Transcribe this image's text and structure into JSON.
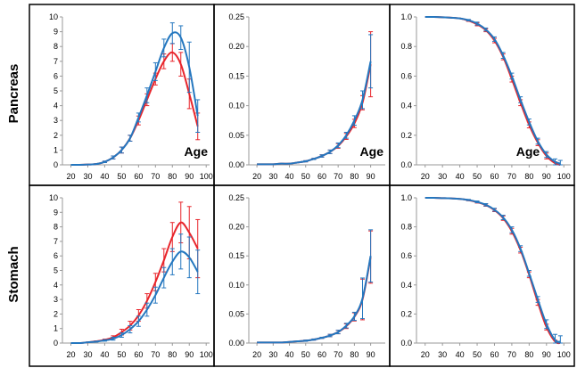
{
  "row_labels": [
    "Pancreas",
    "Stomach"
  ],
  "age_label": "Age",
  "colors": {
    "red": "#e8252b",
    "blue": "#2477bf",
    "axis": "#9a9a9a",
    "frame": "#000000"
  },
  "chart_data": [
    {
      "id": "pancreas-incidence",
      "type": "line",
      "ylim": [
        0,
        10
      ],
      "yticks": [
        0,
        1,
        2,
        3,
        4,
        5,
        6,
        7,
        8,
        9,
        10
      ],
      "ydec": 0,
      "x": [
        20,
        25,
        30,
        35,
        40,
        45,
        50,
        55,
        60,
        65,
        70,
        75,
        80,
        85,
        90,
        95
      ],
      "xlim": [
        15,
        102
      ],
      "xticks": [
        20,
        30,
        40,
        50,
        60,
        70,
        80,
        90,
        100
      ],
      "age_label": true,
      "grid": false,
      "series": [
        {
          "color": "red",
          "values": [
            0,
            0,
            0.02,
            0.05,
            0.2,
            0.5,
            1.0,
            1.8,
            3.0,
            4.4,
            5.8,
            7.0,
            7.6,
            6.8,
            4.8,
            2.6
          ],
          "err": [
            0,
            0,
            0,
            0.02,
            0.05,
            0.1,
            0.2,
            0.2,
            0.3,
            0.4,
            0.4,
            0.5,
            0.6,
            0.8,
            1.0,
            0.9
          ]
        },
        {
          "color": "blue",
          "values": [
            0,
            0,
            0.02,
            0.05,
            0.2,
            0.5,
            1.0,
            1.8,
            3.2,
            4.7,
            6.3,
            7.9,
            8.9,
            8.6,
            6.6,
            3.3
          ],
          "err": [
            0,
            0,
            0,
            0.02,
            0.05,
            0.1,
            0.2,
            0.2,
            0.3,
            0.5,
            0.6,
            0.6,
            0.7,
            0.8,
            1.7,
            1.1
          ]
        }
      ]
    },
    {
      "id": "pancreas-hazard",
      "type": "line",
      "ylim": [
        0,
        0.25
      ],
      "yticks": [
        0,
        0.05,
        0.1,
        0.15,
        0.2,
        0.25
      ],
      "ydec": 2,
      "x": [
        20,
        25,
        30,
        35,
        40,
        45,
        50,
        55,
        60,
        65,
        70,
        75,
        80,
        85,
        90
      ],
      "xlim": [
        15,
        99
      ],
      "xticks": [
        20,
        30,
        40,
        50,
        60,
        70,
        80,
        90
      ],
      "age_label": true,
      "grid": false,
      "series": [
        {
          "color": "red",
          "values": [
            0.001,
            0.001,
            0.001,
            0.002,
            0.002,
            0.004,
            0.006,
            0.01,
            0.015,
            0.022,
            0.032,
            0.048,
            0.07,
            0.105,
            0.17
          ],
          "err": [
            0,
            0,
            0,
            0,
            0,
            0,
            0.001,
            0.001,
            0.002,
            0.003,
            0.004,
            0.005,
            0.007,
            0.012,
            0.055
          ]
        },
        {
          "color": "blue",
          "values": [
            0.001,
            0.001,
            0.001,
            0.002,
            0.002,
            0.004,
            0.006,
            0.01,
            0.015,
            0.022,
            0.033,
            0.05,
            0.075,
            0.11,
            0.175
          ],
          "err": [
            0,
            0,
            0,
            0,
            0,
            0,
            0.001,
            0.001,
            0.002,
            0.003,
            0.004,
            0.005,
            0.008,
            0.015,
            0.045
          ]
        }
      ]
    },
    {
      "id": "pancreas-survival",
      "type": "line",
      "ylim": [
        0,
        1
      ],
      "yticks": [
        0,
        0.2,
        0.4,
        0.6,
        0.8,
        1
      ],
      "ydec": 1,
      "x": [
        20,
        25,
        30,
        35,
        40,
        45,
        50,
        55,
        60,
        65,
        70,
        75,
        80,
        85,
        90,
        95,
        98
      ],
      "xlim": [
        15,
        104
      ],
      "xticks": [
        20,
        30,
        40,
        50,
        60,
        70,
        80,
        90,
        100
      ],
      "age_label": true,
      "grid": false,
      "series": [
        {
          "color": "red",
          "values": [
            1,
            1,
            0.998,
            0.995,
            0.99,
            0.975,
            0.95,
            0.91,
            0.84,
            0.73,
            0.58,
            0.42,
            0.27,
            0.15,
            0.06,
            0.01,
            0
          ],
          "err": [
            0,
            0,
            0,
            0,
            0,
            0.005,
            0.01,
            0.01,
            0.015,
            0.02,
            0.02,
            0.02,
            0.02,
            0.02,
            0.02,
            0.01,
            0
          ]
        },
        {
          "color": "blue",
          "values": [
            1,
            1,
            0.998,
            0.995,
            0.99,
            0.978,
            0.955,
            0.915,
            0.85,
            0.74,
            0.6,
            0.44,
            0.29,
            0.16,
            0.07,
            0.02,
            0.01
          ],
          "err": [
            0,
            0,
            0,
            0,
            0,
            0.005,
            0.01,
            0.01,
            0.015,
            0.02,
            0.02,
            0.02,
            0.02,
            0.02,
            0.02,
            0.02,
            0.02
          ]
        }
      ]
    },
    {
      "id": "stomach-incidence",
      "type": "line",
      "ylim": [
        0,
        10
      ],
      "yticks": [
        0,
        1,
        2,
        3,
        4,
        5,
        6,
        7,
        8,
        9,
        10
      ],
      "ydec": 0,
      "x": [
        20,
        25,
        30,
        35,
        40,
        45,
        50,
        55,
        60,
        65,
        70,
        75,
        80,
        85,
        90,
        95
      ],
      "xlim": [
        15,
        102
      ],
      "xticks": [
        20,
        30,
        40,
        50,
        60,
        70,
        80,
        90,
        100
      ],
      "age_label": false,
      "grid": false,
      "series": [
        {
          "color": "red",
          "values": [
            0,
            0,
            0.05,
            0.12,
            0.22,
            0.4,
            0.75,
            1.2,
            1.9,
            2.9,
            4.2,
            5.7,
            7.3,
            8.3,
            7.6,
            6.5
          ],
          "err": [
            0,
            0,
            0.02,
            0.03,
            0.05,
            0.1,
            0.2,
            0.3,
            0.4,
            0.5,
            0.6,
            0.8,
            1.0,
            1.4,
            1.8,
            2.0
          ]
        },
        {
          "color": "blue",
          "values": [
            0,
            0,
            0.05,
            0.1,
            0.18,
            0.3,
            0.55,
            0.95,
            1.5,
            2.3,
            3.3,
            4.5,
            5.6,
            6.3,
            5.9,
            4.9
          ],
          "err": [
            0,
            0,
            0.02,
            0.03,
            0.05,
            0.1,
            0.15,
            0.25,
            0.35,
            0.45,
            0.55,
            0.7,
            0.9,
            1.2,
            1.4,
            1.5
          ]
        }
      ]
    },
    {
      "id": "stomach-hazard",
      "type": "line",
      "ylim": [
        0,
        0.25
      ],
      "yticks": [
        0,
        0.05,
        0.1,
        0.15,
        0.2,
        0.25
      ],
      "ydec": 2,
      "x": [
        20,
        25,
        30,
        35,
        40,
        45,
        50,
        55,
        60,
        65,
        70,
        75,
        80,
        85,
        90
      ],
      "xlim": [
        15,
        99
      ],
      "xticks": [
        20,
        30,
        40,
        50,
        60,
        70,
        80,
        90
      ],
      "age_label": false,
      "grid": false,
      "series": [
        {
          "color": "red",
          "values": [
            0.001,
            0.001,
            0.001,
            0.001,
            0.002,
            0.003,
            0.004,
            0.006,
            0.009,
            0.013,
            0.019,
            0.029,
            0.045,
            0.075,
            0.148
          ],
          "err": [
            0,
            0,
            0,
            0,
            0,
            0,
            0.001,
            0.001,
            0.001,
            0.002,
            0.003,
            0.004,
            0.007,
            0.035,
            0.045
          ]
        },
        {
          "color": "blue",
          "values": [
            0.001,
            0.001,
            0.001,
            0.001,
            0.002,
            0.003,
            0.004,
            0.006,
            0.009,
            0.013,
            0.019,
            0.03,
            0.046,
            0.077,
            0.15
          ],
          "err": [
            0,
            0,
            0,
            0,
            0,
            0,
            0.001,
            0.001,
            0.001,
            0.002,
            0.003,
            0.004,
            0.007,
            0.035,
            0.045
          ]
        }
      ]
    },
    {
      "id": "stomach-survival",
      "type": "line",
      "ylim": [
        0,
        1
      ],
      "yticks": [
        0,
        0.2,
        0.4,
        0.6,
        0.8,
        1
      ],
      "ydec": 1,
      "x": [
        20,
        25,
        30,
        35,
        40,
        45,
        50,
        55,
        60,
        65,
        70,
        75,
        80,
        85,
        90,
        95,
        98
      ],
      "xlim": [
        15,
        104
      ],
      "xticks": [
        20,
        30,
        40,
        50,
        60,
        70,
        80,
        90,
        100
      ],
      "age_label": false,
      "grid": false,
      "series": [
        {
          "color": "red",
          "values": [
            1,
            1,
            0.998,
            0.996,
            0.992,
            0.984,
            0.97,
            0.95,
            0.915,
            0.86,
            0.77,
            0.64,
            0.47,
            0.28,
            0.11,
            0.01,
            0
          ],
          "err": [
            0,
            0,
            0,
            0,
            0,
            0.004,
            0.006,
            0.008,
            0.01,
            0.015,
            0.02,
            0.02,
            0.02,
            0.02,
            0.02,
            0.01,
            0
          ]
        },
        {
          "color": "blue",
          "values": [
            1,
            1,
            0.998,
            0.996,
            0.992,
            0.985,
            0.972,
            0.952,
            0.918,
            0.865,
            0.78,
            0.65,
            0.48,
            0.3,
            0.13,
            0.02,
            0.01
          ],
          "err": [
            0,
            0,
            0,
            0,
            0,
            0.004,
            0.006,
            0.008,
            0.01,
            0.015,
            0.02,
            0.02,
            0.02,
            0.02,
            0.03,
            0.04,
            0.04
          ]
        }
      ]
    }
  ]
}
